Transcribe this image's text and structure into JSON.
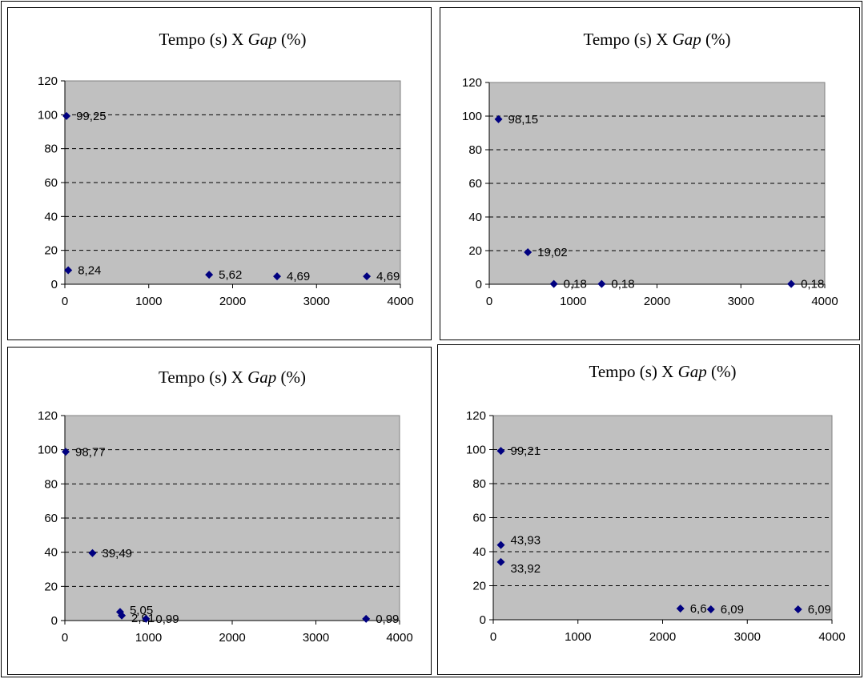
{
  "chart_data": [
    {
      "type": "scatter",
      "title": "Tempo (s) X ",
      "title_italic": "Gap",
      "title_suffix": " (%)",
      "xlim": [
        0,
        4000
      ],
      "ylim": [
        0,
        120
      ],
      "xticks": [
        "0",
        "1000",
        "2000",
        "3000",
        "4000"
      ],
      "yticks": [
        "0",
        "20",
        "40",
        "60",
        "80",
        "100",
        "120"
      ],
      "grid": "horizontal dashed",
      "marker_color": "#000080",
      "plot_bg": "#c0c0c0",
      "points": [
        {
          "x": 20,
          "y": 99.25,
          "label": "99,25"
        },
        {
          "x": 40,
          "y": 8.24,
          "label": "8,24"
        },
        {
          "x": 1720,
          "y": 5.62,
          "label": "5,62"
        },
        {
          "x": 2530,
          "y": 4.69,
          "label": "4,69"
        },
        {
          "x": 3600,
          "y": 4.69,
          "label": "4,69"
        }
      ]
    },
    {
      "type": "scatter",
      "title": "Tempo (s) X ",
      "title_italic": "Gap",
      "title_suffix": " (%)",
      "xlim": [
        0,
        4000
      ],
      "ylim": [
        0,
        120
      ],
      "xticks": [
        "0",
        "1000",
        "2000",
        "3000",
        "4000"
      ],
      "yticks": [
        "0",
        "20",
        "40",
        "60",
        "80",
        "100",
        "120"
      ],
      "grid": "horizontal dashed",
      "marker_color": "#000080",
      "plot_bg": "#c0c0c0",
      "points": [
        {
          "x": 110,
          "y": 98.15,
          "label": "98,15"
        },
        {
          "x": 460,
          "y": 19.02,
          "label": "19,02"
        },
        {
          "x": 770,
          "y": 0.18,
          "label": "0,18"
        },
        {
          "x": 1340,
          "y": 0.18,
          "label": "0,18"
        },
        {
          "x": 3600,
          "y": 0.18,
          "label": "0,18"
        }
      ]
    },
    {
      "type": "scatter",
      "title": "Tempo (s) X ",
      "title_italic": "Gap",
      "title_suffix": " (%)",
      "xlim": [
        0,
        4000
      ],
      "ylim": [
        0,
        120
      ],
      "xticks": [
        "0",
        "1000",
        "2000",
        "3000",
        "4000"
      ],
      "yticks": [
        "0",
        "20",
        "40",
        "60",
        "80",
        "100",
        "120"
      ],
      "grid": "horizontal dashed",
      "marker_color": "#000080",
      "plot_bg": "#c0c0c0",
      "points": [
        {
          "x": 10,
          "y": 98.77,
          "label": "98,77"
        },
        {
          "x": 330,
          "y": 39.49,
          "label": "39,49"
        },
        {
          "x": 660,
          "y": 5.05,
          "label": "5,05"
        },
        {
          "x": 680,
          "y": 2.91,
          "label": "2,91"
        },
        {
          "x": 970,
          "y": 0.99,
          "label": "0,99"
        },
        {
          "x": 3600,
          "y": 0.99,
          "label": "0,99"
        }
      ]
    },
    {
      "type": "scatter",
      "title": "Tempo (s) X ",
      "title_italic": "Gap",
      "title_suffix": " (%)",
      "xlim": [
        0,
        4000
      ],
      "ylim": [
        0,
        120
      ],
      "xticks": [
        "0",
        "1000",
        "2000",
        "3000",
        "4000"
      ],
      "yticks": [
        "0",
        "20",
        "40",
        "60",
        "80",
        "100",
        "120"
      ],
      "grid": "horizontal dashed",
      "marker_color": "#000080",
      "plot_bg": "#c0c0c0",
      "points": [
        {
          "x": 90,
          "y": 99.21,
          "label": "99,21"
        },
        {
          "x": 90,
          "y": 43.93,
          "label": "43,93"
        },
        {
          "x": 90,
          "y": 33.92,
          "label": "33,92"
        },
        {
          "x": 2210,
          "y": 6.6,
          "label": "6,6"
        },
        {
          "x": 2570,
          "y": 6.09,
          "label": "6,09"
        },
        {
          "x": 3600,
          "y": 6.09,
          "label": "6,09"
        }
      ]
    }
  ]
}
